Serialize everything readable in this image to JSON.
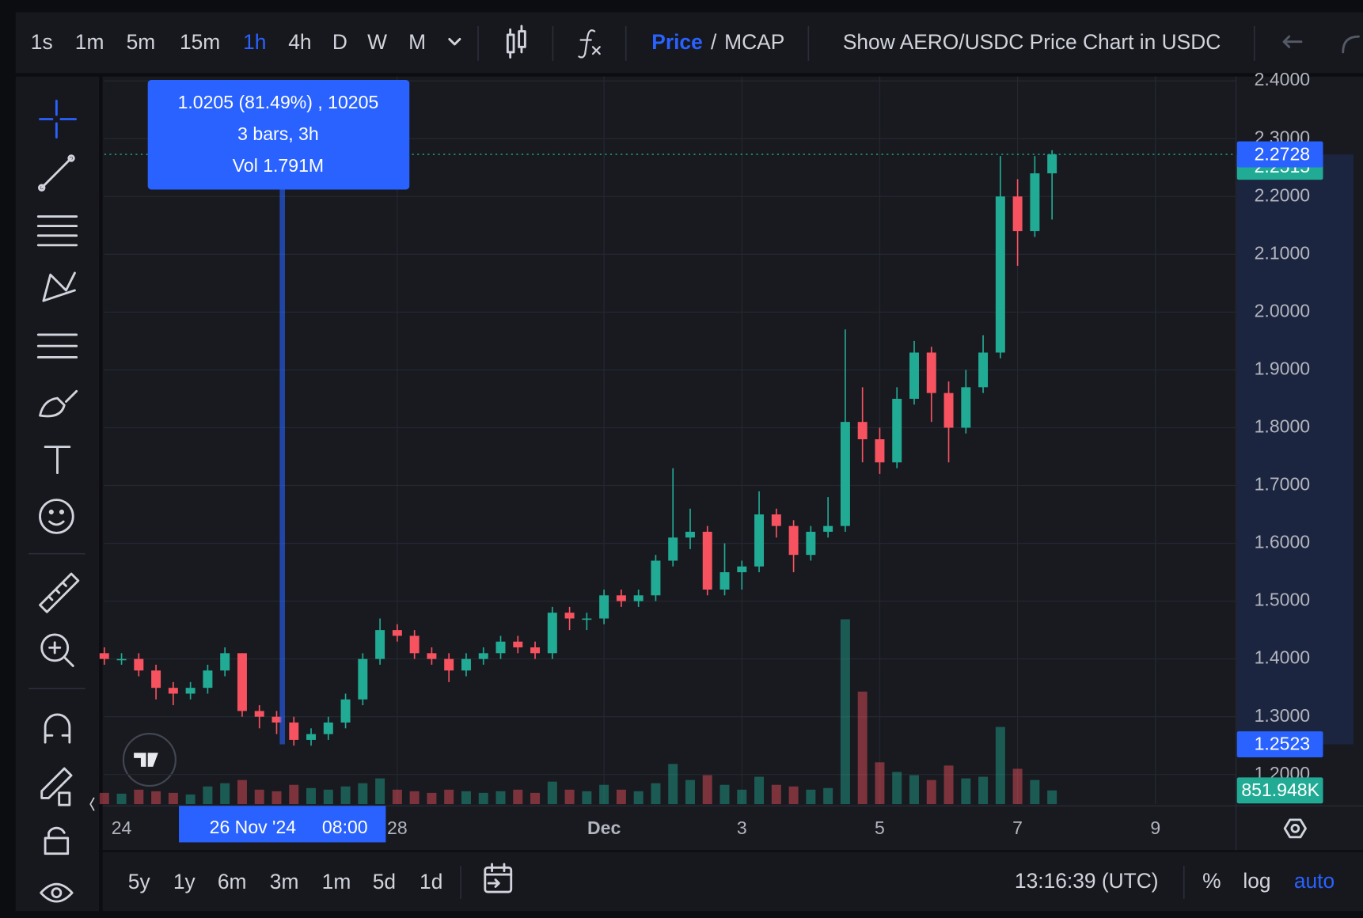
{
  "toolbar": {
    "intervals": [
      {
        "label": "1s",
        "active": false
      },
      {
        "label": "1m",
        "active": false
      },
      {
        "label": "5m",
        "active": false
      },
      {
        "label": "15m",
        "active": false
      },
      {
        "label": "1h",
        "active": true
      },
      {
        "label": "4h",
        "active": false
      },
      {
        "label": "D",
        "active": false
      },
      {
        "label": "W",
        "active": false
      },
      {
        "label": "M",
        "active": false
      }
    ],
    "price": "Price",
    "separator": "/",
    "mcap": "MCAP",
    "show_label": "Show AERO/USDC Price Chart in USDC"
  },
  "chart_data": {
    "type": "candlestick",
    "up_color": "#22ab94",
    "down_color": "#f7525f",
    "grid": true,
    "ylim": [
      1.2,
      2.4
    ],
    "yticks": [
      {
        "value": 1.2,
        "label": "1.2000"
      },
      {
        "value": 1.3,
        "label": "1.3000"
      },
      {
        "value": 1.4,
        "label": "1.4000"
      },
      {
        "value": 1.5,
        "label": "1.5000"
      },
      {
        "value": 1.6,
        "label": "1.6000"
      },
      {
        "value": 1.7,
        "label": "1.7000"
      },
      {
        "value": 1.8,
        "label": "1.8000"
      },
      {
        "value": 1.9,
        "label": "1.9000"
      },
      {
        "value": 2.0,
        "label": "2.0000"
      },
      {
        "value": 2.1,
        "label": "2.1000"
      },
      {
        "value": 2.2,
        "label": "2.2000"
      },
      {
        "value": 2.3,
        "label": "2.3000"
      },
      {
        "value": 2.4,
        "label": "2.4000"
      }
    ],
    "xlim": [
      -0.25,
      16.17
    ],
    "xticks": [
      {
        "value": 0,
        "label": "24"
      },
      {
        "value": 4,
        "label": "28"
      },
      {
        "value": 7,
        "label": "Dec"
      },
      {
        "value": 9,
        "label": "3"
      },
      {
        "value": 11,
        "label": "5"
      },
      {
        "value": 13,
        "label": "7"
      },
      {
        "value": 15,
        "label": "9"
      }
    ],
    "x": [
      -0.25,
      0,
      0.25,
      0.5,
      0.75,
      1,
      1.25,
      1.5,
      1.75,
      2,
      2.25,
      2.5,
      2.75,
      3,
      3.25,
      3.5,
      3.75,
      4,
      4.25,
      4.5,
      4.75,
      5,
      5.25,
      5.5,
      5.75,
      6,
      6.25,
      6.5,
      6.75,
      7,
      7.25,
      7.5,
      7.75,
      8,
      8.25,
      8.5,
      8.75,
      9,
      9.25,
      9.5,
      9.75,
      10,
      10.25,
      10.5,
      10.75,
      11,
      11.25,
      11.5,
      11.75,
      12,
      12.25,
      12.5,
      12.75,
      13,
      13.25,
      13.5
    ],
    "open": [
      1.41,
      1.4,
      1.4,
      1.38,
      1.35,
      1.34,
      1.35,
      1.38,
      1.41,
      1.31,
      1.3,
      1.29,
      1.26,
      1.27,
      1.29,
      1.33,
      1.4,
      1.45,
      1.44,
      1.41,
      1.4,
      1.38,
      1.4,
      1.41,
      1.43,
      1.42,
      1.41,
      1.48,
      1.47,
      1.47,
      1.51,
      1.5,
      1.51,
      1.57,
      1.61,
      1.62,
      1.52,
      1.55,
      1.56,
      1.65,
      1.63,
      1.58,
      1.62,
      1.63,
      1.81,
      1.78,
      1.74,
      1.85,
      1.93,
      1.86,
      1.8,
      1.87,
      1.93,
      2.2,
      2.14,
      2.24
    ],
    "high": [
      1.42,
      1.41,
      1.41,
      1.39,
      1.36,
      1.36,
      1.39,
      1.42,
      1.41,
      1.32,
      1.31,
      1.3,
      1.28,
      1.3,
      1.34,
      1.41,
      1.47,
      1.46,
      1.45,
      1.42,
      1.41,
      1.41,
      1.42,
      1.44,
      1.44,
      1.43,
      1.49,
      1.49,
      1.48,
      1.52,
      1.52,
      1.52,
      1.58,
      1.73,
      1.66,
      1.63,
      1.6,
      1.57,
      1.69,
      1.66,
      1.64,
      1.63,
      1.68,
      1.97,
      1.87,
      1.8,
      1.87,
      1.95,
      1.94,
      1.88,
      1.9,
      1.96,
      2.27,
      2.23,
      2.27,
      2.28
    ],
    "low": [
      1.39,
      1.39,
      1.37,
      1.33,
      1.32,
      1.33,
      1.34,
      1.37,
      1.3,
      1.28,
      1.27,
      1.25,
      1.25,
      1.26,
      1.28,
      1.32,
      1.39,
      1.43,
      1.4,
      1.39,
      1.36,
      1.37,
      1.39,
      1.4,
      1.41,
      1.4,
      1.4,
      1.45,
      1.45,
      1.46,
      1.49,
      1.49,
      1.5,
      1.56,
      1.59,
      1.51,
      1.51,
      1.52,
      1.55,
      1.61,
      1.55,
      1.57,
      1.61,
      1.62,
      1.74,
      1.72,
      1.73,
      1.84,
      1.81,
      1.74,
      1.79,
      1.86,
      1.92,
      2.08,
      2.13,
      2.16
    ],
    "close": [
      1.4,
      1.4,
      1.38,
      1.35,
      1.34,
      1.35,
      1.38,
      1.41,
      1.31,
      1.3,
      1.29,
      1.26,
      1.27,
      1.29,
      1.33,
      1.4,
      1.45,
      1.44,
      1.41,
      1.4,
      1.38,
      1.4,
      1.41,
      1.43,
      1.42,
      1.41,
      1.48,
      1.47,
      1.47,
      1.51,
      1.5,
      1.51,
      1.57,
      1.61,
      1.62,
      1.52,
      1.55,
      1.56,
      1.65,
      1.63,
      1.58,
      1.62,
      1.63,
      1.81,
      1.78,
      1.74,
      1.85,
      1.93,
      1.86,
      1.8,
      1.87,
      1.93,
      2.2,
      2.14,
      2.24,
      2.2728
    ],
    "volume_lim": [
      0,
      45000
    ],
    "volumes": [
      700,
      650,
      900,
      800,
      700,
      600,
      1100,
      1300,
      1500,
      900,
      800,
      1200,
      1000,
      900,
      1100,
      1300,
      1600,
      900,
      800,
      700,
      900,
      800,
      700,
      800,
      900,
      700,
      1400,
      900,
      800,
      1200,
      900,
      800,
      1300,
      2500,
      1500,
      1800,
      1200,
      900,
      1700,
      1200,
      1100,
      900,
      1000,
      11500,
      7000,
      2600,
      2000,
      1800,
      1500,
      2400,
      1600,
      1700,
      4800,
      2200,
      1500,
      851.948
    ],
    "markers": [
      {
        "value": 2.2515,
        "color": "#22ab94"
      },
      {
        "value": 2.2728,
        "color": "#2962ff"
      },
      {
        "value": 1.2523,
        "color": "#2962ff"
      }
    ],
    "volume_marker": {
      "value": 851.948,
      "label": "851.948K",
      "color": "#22ab94"
    },
    "crosshair": {
      "x": 2.333,
      "date": "26 Nov '24",
      "time": "08:00"
    }
  },
  "measure": {
    "lines": [
      "1.0205 (81.49%) , 10205",
      "3 bars, 3h",
      "Vol 1.791M"
    ]
  },
  "bottom": {
    "ranges": [
      "5y",
      "1y",
      "6m",
      "3m",
      "1m",
      "5d",
      "1d"
    ],
    "time": "13:16:39 (UTC)",
    "percent": "%",
    "log": "log",
    "auto": "auto"
  }
}
